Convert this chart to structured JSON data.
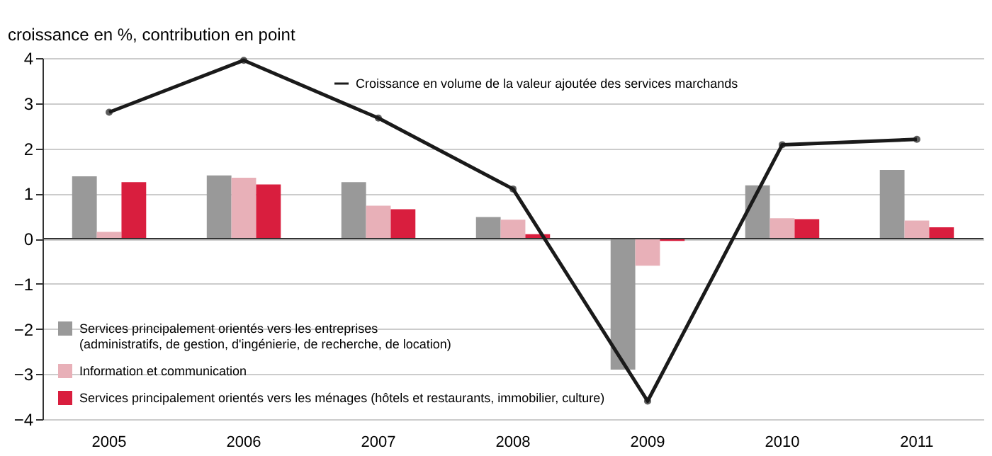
{
  "chart_data": {
    "type": "bar",
    "ylabel": "croissance en %, contribution en point",
    "categories": [
      "2005",
      "2006",
      "2007",
      "2008",
      "2009",
      "2010",
      "2011"
    ],
    "series": [
      {
        "name": "Services principalement orientés vers les entreprises (administratifs, de gestion, d'ingénierie, de recherche, de location)",
        "color": "#999999",
        "values": [
          1.38,
          1.4,
          1.25,
          0.48,
          -2.9,
          1.18,
          1.52
        ]
      },
      {
        "name": "Information et communication",
        "color": "#e8b0b8",
        "values": [
          0.15,
          1.35,
          0.73,
          0.42,
          -0.6,
          0.45,
          0.4
        ]
      },
      {
        "name": "Services principalement orientés vers les ménages (hôtels et restaurants, immobilier, culture)",
        "color": "#d91e3e",
        "values": [
          1.25,
          1.2,
          0.65,
          0.1,
          -0.05,
          0.43,
          0.25
        ]
      },
      {
        "name": "Croissance en volume de la valeur ajoutée des services marchands",
        "color": "#1a1a1a",
        "type": "line",
        "marker": "circle",
        "values": [
          2.8,
          3.95,
          2.67,
          1.1,
          -3.6,
          2.08,
          2.2
        ]
      }
    ],
    "ylim": [
      -4,
      4
    ],
    "yticks": [
      -4,
      -3,
      -2,
      -1,
      0,
      1,
      2,
      3,
      4
    ],
    "grid": "y",
    "legend": "bottom left"
  }
}
